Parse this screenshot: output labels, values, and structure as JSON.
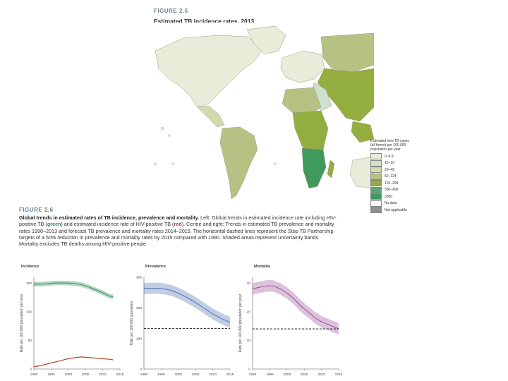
{
  "figure25": {
    "label": "FIGURE 2.5",
    "title": "Estimated TB incidence rates, 2013",
    "legend": {
      "title": "Estimated new TB cases (all forms) per 100 000 population per year",
      "items": [
        {
          "label": "0–9.9",
          "color": "#e9ecd8"
        },
        {
          "label": "10–19",
          "color": "#cfe0cc"
        },
        {
          "label": "20–49",
          "color": "#d4d9ae"
        },
        {
          "label": "50–124",
          "color": "#b6c283"
        },
        {
          "label": "125–299",
          "color": "#93ad3e"
        },
        {
          "label": "300–499",
          "color": "#5fa370"
        },
        {
          "label": "≥500",
          "color": "#3f9a5c"
        },
        {
          "label": "No data",
          "color": "#ffffff"
        },
        {
          "label": "Not applicable",
          "color": "#8f8f8f"
        }
      ]
    }
  },
  "figure26": {
    "label": "FIGURE 2.6",
    "caption_bold": "Global trends in estimated rates of TB incidence, prevalence and mortality.",
    "caption_parts": [
      " Left: Global trends in estimated incidence rate including HIV-positive TB (",
      "green",
      ") and estimated incidence rate of HIV-positive TB (",
      "red",
      "). Centre and right: Trends in estimated TB prevalence and mortality rates 1990–2013 and forecast TB prevalence and mortality rates 2014–2015. The horizontal dashed lines represent the Stop TB Partnership targets of a 50% reduction in prevalence and mortality rates by 2015 compared with 1990. Shaded areas represent uncertainty bands. Mortality excludes TB deaths among HIV-positive people."
    ]
  },
  "chart_data": [
    {
      "type": "line",
      "title": "Incidence",
      "ylabel": "Rate per 100 000 population per year",
      "x_ticks": [
        "1990",
        "1995",
        "2000",
        "2005",
        "2010",
        "2015"
      ],
      "y_ticks": [
        "0",
        "50",
        "100",
        "150"
      ],
      "ylim": [
        0,
        160
      ],
      "series": [
        {
          "name": "Incidence rate including HIV-positive TB",
          "color": "#2e8b57",
          "x": [
            1990,
            1992,
            1994,
            1996,
            1998,
            2000,
            2002,
            2004,
            2006,
            2008,
            2010,
            2012,
            2013
          ],
          "values": [
            148,
            148,
            149,
            150,
            150,
            150,
            149,
            147,
            143,
            138,
            133,
            127,
            126
          ],
          "band": 4
        },
        {
          "name": "Incidence rate of HIV-positive TB",
          "color": "#c0392b",
          "x": [
            1990,
            1992,
            1994,
            1996,
            1998,
            2000,
            2002,
            2004,
            2006,
            2008,
            2010,
            2012,
            2013
          ],
          "values": [
            4,
            6,
            9,
            12,
            15,
            18,
            20,
            21,
            20,
            19,
            18,
            17,
            16
          ],
          "band": 1
        }
      ]
    },
    {
      "type": "line",
      "title": "Prevalence",
      "ylabel": "Rate per 100 000 population",
      "x_ticks": [
        "1990",
        "1995",
        "2000",
        "2005",
        "2010",
        "2015"
      ],
      "y_ticks": [
        "0",
        "100",
        "200",
        "300"
      ],
      "ylim": [
        0,
        300
      ],
      "target": 133,
      "series": [
        {
          "name": "Prevalence",
          "color": "#4a6fb0",
          "x": [
            1990,
            1992,
            1994,
            1996,
            1998,
            2000,
            2002,
            2004,
            2006,
            2008,
            2010,
            2012,
            2013,
            2015
          ],
          "values": [
            263,
            264,
            264,
            262,
            257,
            248,
            237,
            224,
            210,
            195,
            180,
            168,
            162,
            153
          ],
          "band": 18
        }
      ]
    },
    {
      "type": "line",
      "title": "Mortality",
      "ylabel": "Rate per 100 000 population per year",
      "x_ticks": [
        "1990",
        "1995",
        "2000",
        "2005",
        "2010",
        "2015"
      ],
      "y_ticks": [
        "0",
        "10",
        "20",
        "30"
      ],
      "ylim": [
        0,
        32
      ],
      "target": 14,
      "series": [
        {
          "name": "Mortality",
          "color": "#9b4d9b",
          "x": [
            1990,
            1992,
            1994,
            1996,
            1998,
            2000,
            2002,
            2004,
            2006,
            2008,
            2010,
            2012,
            2013,
            2015
          ],
          "values": [
            28,
            28.5,
            29,
            29,
            28,
            26.5,
            24.5,
            22,
            20,
            18,
            16.5,
            15.5,
            15,
            14
          ],
          "band": 2
        }
      ]
    }
  ]
}
